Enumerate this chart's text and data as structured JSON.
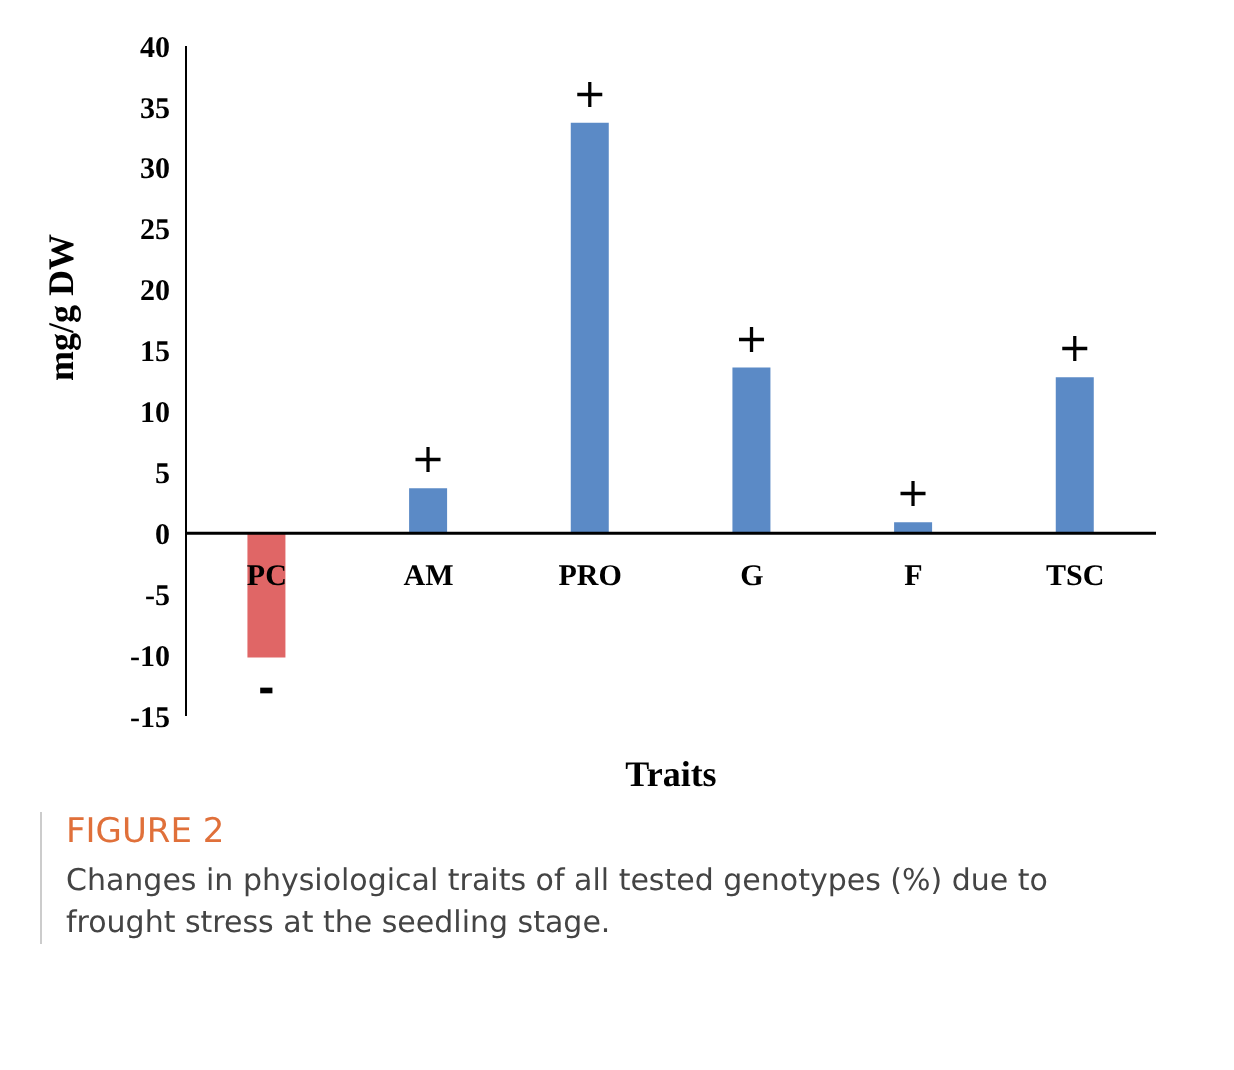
{
  "chart_data": {
    "type": "bar",
    "title": "FIGURE 2",
    "xlabel": "Traits",
    "ylabel": "mg/g DW",
    "categories": [
      "PC",
      "AM",
      "PRO",
      "G",
      "F",
      "TSC"
    ],
    "values": [
      -10.2,
      3.7,
      33.7,
      13.6,
      0.9,
      12.8
    ],
    "colors": [
      "#e06666",
      "#5b8ac6",
      "#5b8ac6",
      "#5b8ac6",
      "#5b8ac6",
      "#5b8ac6"
    ],
    "value_labels": [
      "-",
      "+",
      "+",
      "+",
      "+",
      "+"
    ],
    "ylim": [
      -15,
      40
    ],
    "yticks": [
      -15,
      -10,
      -5,
      0,
      5,
      10,
      15,
      20,
      25,
      30,
      35,
      40
    ],
    "grid": false,
    "legend": false,
    "annotations": [
      "Changes in physiological traits of all tested genotypes (%) due to frought stress at the seedling stage."
    ]
  }
}
